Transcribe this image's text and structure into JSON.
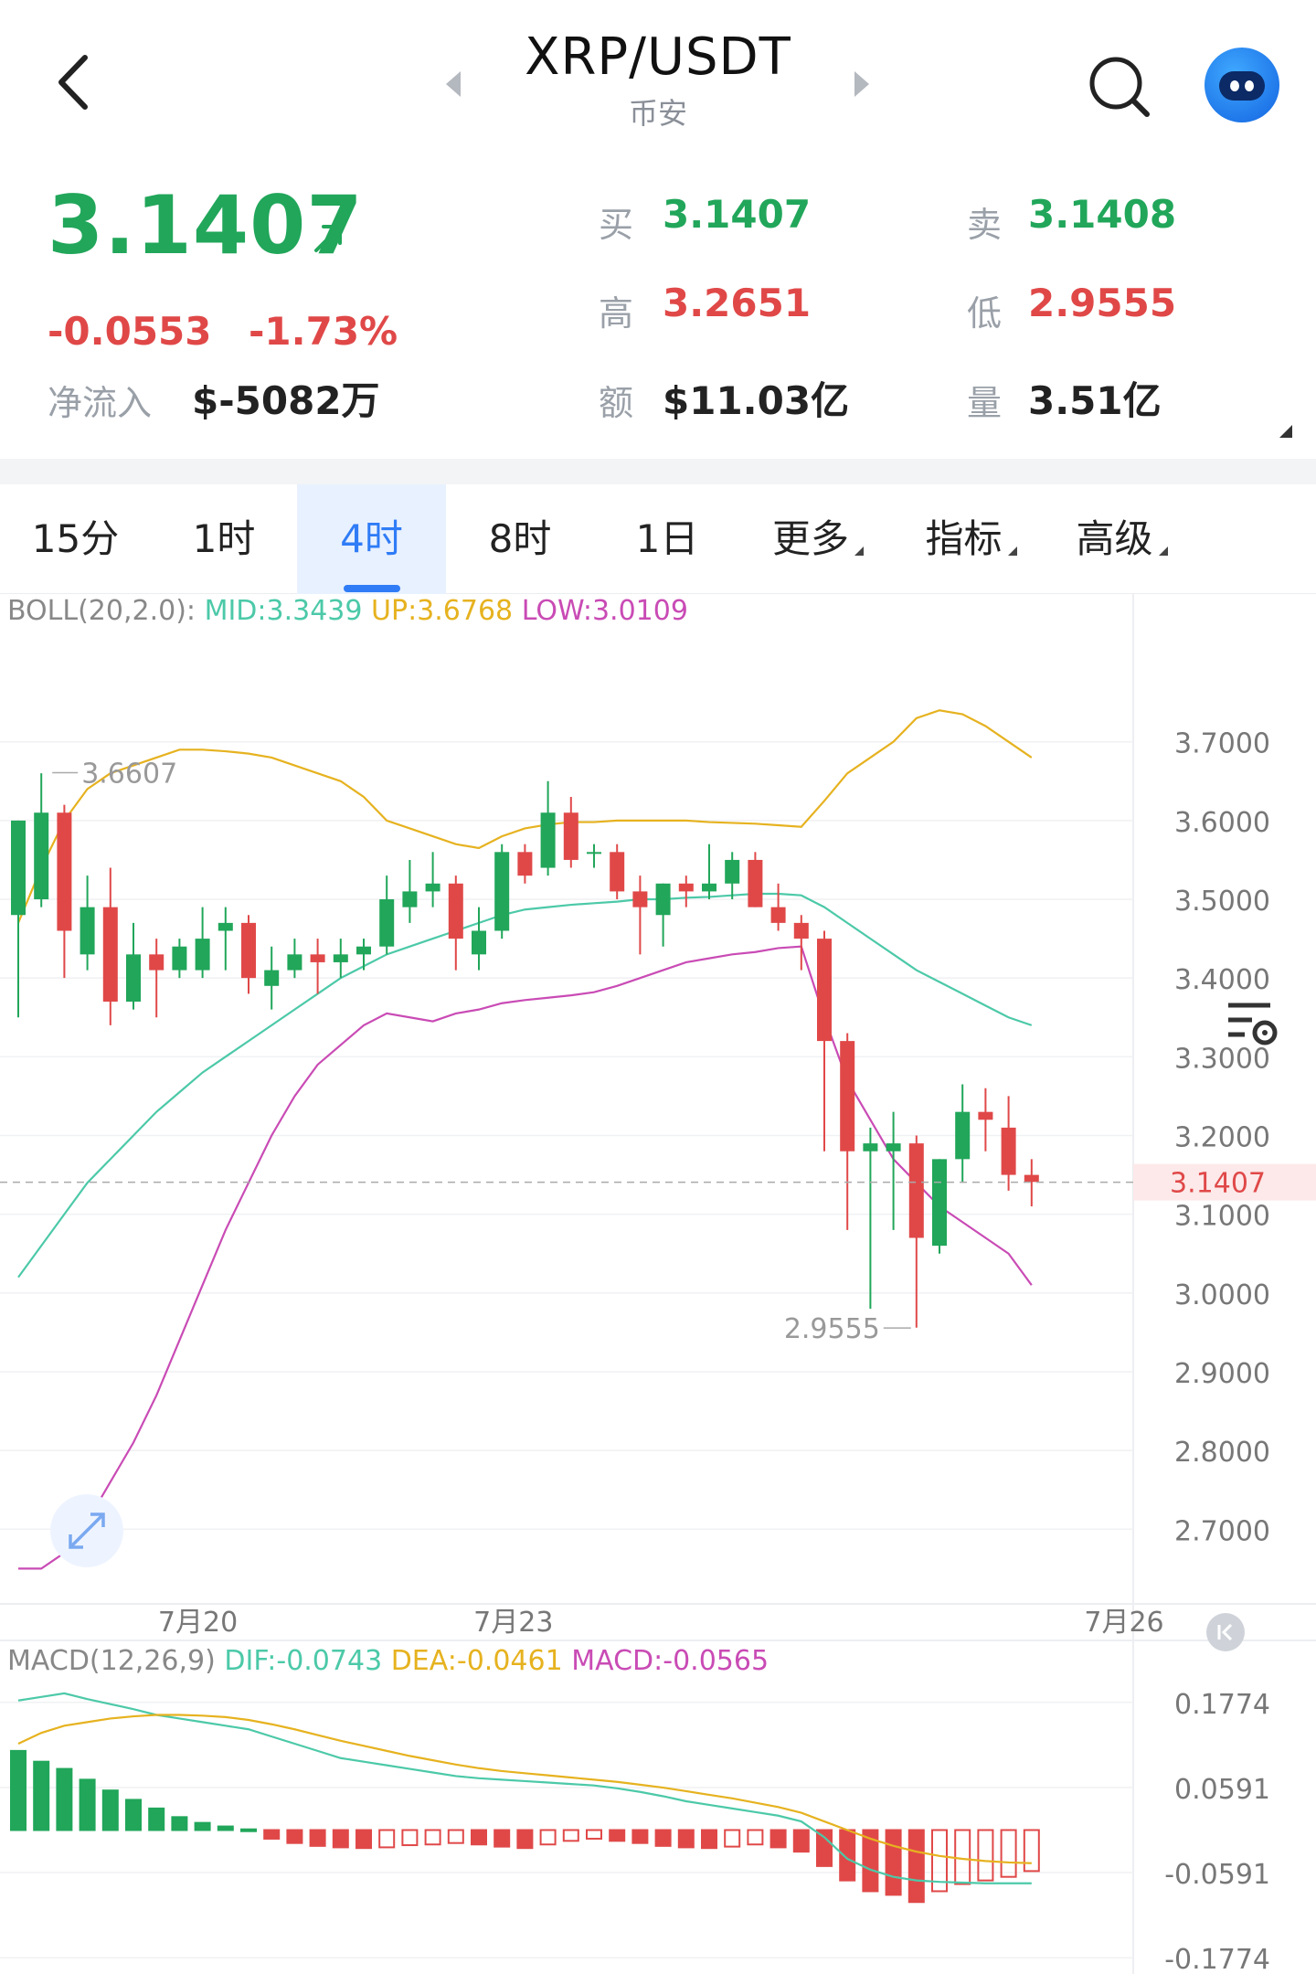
{
  "header": {
    "pair": "XRP/USDT",
    "exchange": "币安"
  },
  "ticker": {
    "last": "3.1407",
    "change": "-0.0553",
    "change_pct": "-1.73%",
    "netflow_label": "净流入",
    "netflow_value": "$-5082万",
    "buy_label": "买",
    "buy_value": "3.1407",
    "sell_label": "卖",
    "sell_value": "3.1408",
    "high_label": "高",
    "high_value": "3.2651",
    "low_label": "低",
    "low_value": "2.9555",
    "amount_label": "额",
    "amount_value": "$11.03亿",
    "volume_label": "量",
    "volume_value": "3.51亿"
  },
  "tabs": [
    {
      "label": "15分"
    },
    {
      "label": "1时"
    },
    {
      "label": "4时",
      "active": true
    },
    {
      "label": "8时"
    },
    {
      "label": "1日"
    },
    {
      "label": "更多"
    },
    {
      "label": "指标"
    },
    {
      "label": "高级"
    }
  ],
  "colors": {
    "up": "#21a65a",
    "down": "#e04848",
    "mid": "#4cc9a8",
    "upper": "#e6b21f",
    "lower": "#c94bb5",
    "accent": "#2f7cf6"
  },
  "chart_data": [
    {
      "type": "candlestick",
      "indicator": "BOLL(20,2.0)",
      "legend": {
        "prefix": "BOLL(20,2.0):",
        "mid": "MID:3.3439",
        "up": "UP:3.6768",
        "low": "LOW:3.0109"
      },
      "y_ticks": [
        "3.7000",
        "3.6000",
        "3.5000",
        "3.4000",
        "3.3000",
        "3.2000",
        "3.1000",
        "3.0000",
        "2.9000",
        "2.8000",
        "2.7000"
      ],
      "ylim": [
        2.64,
        3.76
      ],
      "x_ticks": [
        "7月20",
        "7月23",
        "7月26"
      ],
      "current_price": "3.1407",
      "annotations": {
        "high": "3.6607",
        "low": "2.9555"
      },
      "candles": [
        {
          "o": 3.48,
          "h": 3.6,
          "l": 3.35,
          "c": 3.6
        },
        {
          "o": 3.5,
          "h": 3.66,
          "l": 3.49,
          "c": 3.61
        },
        {
          "o": 3.61,
          "h": 3.62,
          "l": 3.4,
          "c": 3.46
        },
        {
          "o": 3.43,
          "h": 3.53,
          "l": 3.41,
          "c": 3.49
        },
        {
          "o": 3.49,
          "h": 3.54,
          "l": 3.34,
          "c": 3.37
        },
        {
          "o": 3.37,
          "h": 3.47,
          "l": 3.36,
          "c": 3.43
        },
        {
          "o": 3.43,
          "h": 3.45,
          "l": 3.35,
          "c": 3.41
        },
        {
          "o": 3.41,
          "h": 3.45,
          "l": 3.4,
          "c": 3.44
        },
        {
          "o": 3.41,
          "h": 3.49,
          "l": 3.4,
          "c": 3.45
        },
        {
          "o": 3.46,
          "h": 3.49,
          "l": 3.41,
          "c": 3.47
        },
        {
          "o": 3.47,
          "h": 3.48,
          "l": 3.38,
          "c": 3.4
        },
        {
          "o": 3.39,
          "h": 3.44,
          "l": 3.36,
          "c": 3.41
        },
        {
          "o": 3.41,
          "h": 3.45,
          "l": 3.4,
          "c": 3.43
        },
        {
          "o": 3.43,
          "h": 3.45,
          "l": 3.38,
          "c": 3.42
        },
        {
          "o": 3.42,
          "h": 3.45,
          "l": 3.4,
          "c": 3.43
        },
        {
          "o": 3.43,
          "h": 3.45,
          "l": 3.41,
          "c": 3.44
        },
        {
          "o": 3.44,
          "h": 3.53,
          "l": 3.43,
          "c": 3.5
        },
        {
          "o": 3.49,
          "h": 3.55,
          "l": 3.47,
          "c": 3.51
        },
        {
          "o": 3.51,
          "h": 3.56,
          "l": 3.49,
          "c": 3.52
        },
        {
          "o": 3.52,
          "h": 3.53,
          "l": 3.41,
          "c": 3.45
        },
        {
          "o": 3.43,
          "h": 3.49,
          "l": 3.41,
          "c": 3.46
        },
        {
          "o": 3.46,
          "h": 3.57,
          "l": 3.45,
          "c": 3.56
        },
        {
          "o": 3.56,
          "h": 3.57,
          "l": 3.52,
          "c": 3.53
        },
        {
          "o": 3.54,
          "h": 3.65,
          "l": 3.53,
          "c": 3.61
        },
        {
          "o": 3.61,
          "h": 3.63,
          "l": 3.54,
          "c": 3.55
        },
        {
          "o": 3.56,
          "h": 3.57,
          "l": 3.54,
          "c": 3.56
        },
        {
          "o": 3.56,
          "h": 3.57,
          "l": 3.5,
          "c": 3.51
        },
        {
          "o": 3.51,
          "h": 3.53,
          "l": 3.43,
          "c": 3.49
        },
        {
          "o": 3.48,
          "h": 3.52,
          "l": 3.44,
          "c": 3.52
        },
        {
          "o": 3.52,
          "h": 3.53,
          "l": 3.49,
          "c": 3.51
        },
        {
          "o": 3.51,
          "h": 3.57,
          "l": 3.5,
          "c": 3.52
        },
        {
          "o": 3.52,
          "h": 3.56,
          "l": 3.5,
          "c": 3.55
        },
        {
          "o": 3.55,
          "h": 3.56,
          "l": 3.49,
          "c": 3.49
        },
        {
          "o": 3.49,
          "h": 3.52,
          "l": 3.46,
          "c": 3.47
        },
        {
          "o": 3.47,
          "h": 3.48,
          "l": 3.41,
          "c": 3.45
        },
        {
          "o": 3.45,
          "h": 3.46,
          "l": 3.18,
          "c": 3.32
        },
        {
          "o": 3.32,
          "h": 3.33,
          "l": 3.08,
          "c": 3.18
        },
        {
          "o": 3.18,
          "h": 3.21,
          "l": 2.98,
          "c": 3.19
        },
        {
          "o": 3.18,
          "h": 3.23,
          "l": 3.08,
          "c": 3.19
        },
        {
          "o": 3.19,
          "h": 3.2,
          "l": 2.956,
          "c": 3.07
        },
        {
          "o": 3.06,
          "h": 3.17,
          "l": 3.05,
          "c": 3.17
        },
        {
          "o": 3.17,
          "h": 3.265,
          "l": 3.14,
          "c": 3.23
        },
        {
          "o": 3.23,
          "h": 3.26,
          "l": 3.18,
          "c": 3.22
        },
        {
          "o": 3.21,
          "h": 3.25,
          "l": 3.13,
          "c": 3.15
        },
        {
          "o": 3.15,
          "h": 3.17,
          "l": 3.11,
          "c": 3.141
        }
      ],
      "series": [
        {
          "name": "UP",
          "values": [
            3.47,
            3.54,
            3.6,
            3.64,
            3.66,
            3.67,
            3.68,
            3.69,
            3.69,
            3.688,
            3.685,
            3.68,
            3.67,
            3.66,
            3.65,
            3.63,
            3.6,
            3.59,
            3.58,
            3.57,
            3.565,
            3.58,
            3.59,
            3.595,
            3.598,
            3.598,
            3.6,
            3.6,
            3.6,
            3.6,
            3.598,
            3.597,
            3.596,
            3.594,
            3.592,
            3.625,
            3.66,
            3.68,
            3.7,
            3.73,
            3.74,
            3.735,
            3.72,
            3.7,
            3.68
          ]
        },
        {
          "name": "MID",
          "values": [
            3.02,
            3.06,
            3.1,
            3.14,
            3.17,
            3.2,
            3.23,
            3.255,
            3.28,
            3.3,
            3.32,
            3.34,
            3.36,
            3.38,
            3.4,
            3.415,
            3.43,
            3.44,
            3.45,
            3.46,
            3.47,
            3.48,
            3.487,
            3.49,
            3.493,
            3.495,
            3.497,
            3.5,
            3.5,
            3.502,
            3.503,
            3.505,
            3.507,
            3.507,
            3.505,
            3.49,
            3.47,
            3.45,
            3.43,
            3.41,
            3.395,
            3.38,
            3.365,
            3.35,
            3.34
          ]
        },
        {
          "name": "LOW",
          "values": [
            2.65,
            2.65,
            2.67,
            2.71,
            2.76,
            2.81,
            2.87,
            2.94,
            3.01,
            3.08,
            3.14,
            3.2,
            3.25,
            3.29,
            3.315,
            3.34,
            3.355,
            3.35,
            3.345,
            3.355,
            3.36,
            3.368,
            3.372,
            3.375,
            3.378,
            3.382,
            3.39,
            3.4,
            3.41,
            3.42,
            3.425,
            3.43,
            3.433,
            3.438,
            3.44,
            3.35,
            3.27,
            3.22,
            3.17,
            3.14,
            3.11,
            3.09,
            3.07,
            3.05,
            3.01
          ]
        }
      ]
    },
    {
      "type": "bar",
      "indicator": "MACD(12,26,9)",
      "legend": {
        "prefix": "MACD(12,26,9)",
        "dif": "DIF:-0.0743",
        "dea": "DEA:-0.0461",
        "macd": "MACD:-0.0565"
      },
      "y_ticks": [
        "0.1774",
        "0.0591",
        "-0.0591",
        "-0.1774"
      ],
      "ylim": [
        -0.2,
        0.2
      ],
      "values": [
        0.11,
        0.095,
        0.085,
        0.07,
        0.055,
        0.042,
        0.03,
        0.018,
        0.01,
        0.005,
        0.001,
        -0.012,
        -0.018,
        -0.022,
        -0.024,
        -0.025,
        -0.024,
        -0.021,
        -0.02,
        -0.018,
        -0.02,
        -0.023,
        -0.025,
        -0.02,
        -0.015,
        -0.012,
        -0.015,
        -0.018,
        -0.022,
        -0.024,
        -0.025,
        -0.023,
        -0.02,
        -0.024,
        -0.03,
        -0.05,
        -0.07,
        -0.085,
        -0.09,
        -0.1,
        -0.085,
        -0.075,
        -0.07,
        -0.065,
        -0.057
      ],
      "series": [
        {
          "name": "DIF",
          "values": [
            0.18,
            0.185,
            0.19,
            0.182,
            0.175,
            0.168,
            0.16,
            0.155,
            0.15,
            0.145,
            0.14,
            0.13,
            0.12,
            0.11,
            0.1,
            0.095,
            0.09,
            0.085,
            0.08,
            0.075,
            0.072,
            0.07,
            0.068,
            0.066,
            0.064,
            0.062,
            0.058,
            0.053,
            0.047,
            0.04,
            0.035,
            0.03,
            0.025,
            0.02,
            0.012,
            -0.01,
            -0.04,
            -0.055,
            -0.065,
            -0.07,
            -0.072,
            -0.073,
            -0.074,
            -0.074,
            -0.074
          ]
        },
        {
          "name": "DEA",
          "values": [
            0.12,
            0.135,
            0.145,
            0.15,
            0.155,
            0.158,
            0.16,
            0.16,
            0.159,
            0.157,
            0.153,
            0.147,
            0.14,
            0.132,
            0.124,
            0.117,
            0.11,
            0.103,
            0.097,
            0.091,
            0.086,
            0.082,
            0.079,
            0.076,
            0.073,
            0.07,
            0.067,
            0.063,
            0.059,
            0.054,
            0.049,
            0.044,
            0.038,
            0.032,
            0.024,
            0.012,
            0.0,
            -0.012,
            -0.022,
            -0.03,
            -0.036,
            -0.04,
            -0.043,
            -0.045,
            -0.046
          ]
        }
      ]
    }
  ]
}
